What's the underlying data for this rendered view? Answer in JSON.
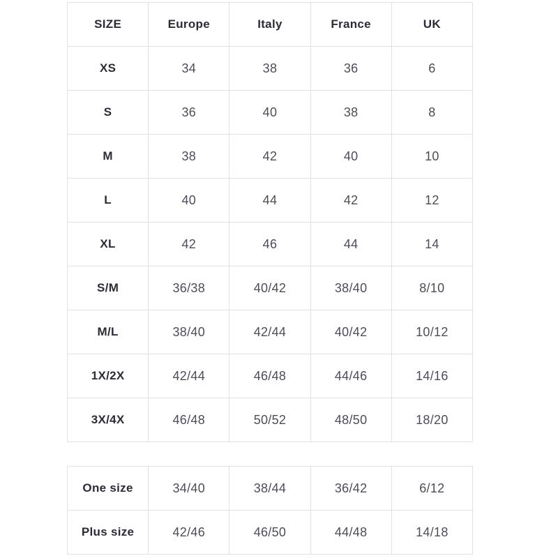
{
  "chart_data": {
    "type": "table",
    "tables": [
      {
        "columns": [
          "SIZE",
          "Europe",
          "Italy",
          "France",
          "UK"
        ],
        "rows": [
          [
            "XS",
            "34",
            "38",
            "36",
            "6"
          ],
          [
            "S",
            "36",
            "40",
            "38",
            "8"
          ],
          [
            "M",
            "38",
            "42",
            "40",
            "10"
          ],
          [
            "L",
            "40",
            "44",
            "42",
            "12"
          ],
          [
            "XL",
            "42",
            "46",
            "44",
            "14"
          ],
          [
            "S/M",
            "36/38",
            "40/42",
            "38/40",
            "8/10"
          ],
          [
            "M/L",
            "38/40",
            "42/44",
            "40/42",
            "10/12"
          ],
          [
            "1X/2X",
            "42/44",
            "46/48",
            "44/46",
            "14/16"
          ],
          [
            "3X/4X",
            "46/48",
            "50/52",
            "48/50",
            "18/20"
          ]
        ]
      },
      {
        "rows": [
          [
            "One size",
            "34/40",
            "38/44",
            "36/42",
            "6/12"
          ],
          [
            "Plus size",
            "42/46",
            "46/50",
            "44/48",
            "14/18"
          ]
        ]
      }
    ],
    "layout": {
      "grid": "full-borders",
      "column_count": 5,
      "label_column": "SIZE"
    }
  },
  "colors": {
    "background": "#ffffff",
    "border": "#e1e1e1",
    "label_text": "#2c2c36",
    "value_text": "#4d4d58"
  }
}
